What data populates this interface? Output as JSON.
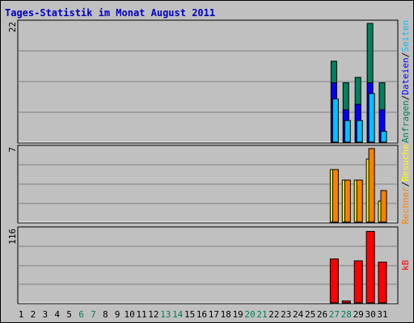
{
  "title": "Tages-Statistik im Monat August 2011",
  "colors": {
    "background": "#c0c0c0",
    "title": "#0000c0",
    "anfragen": "#00805c",
    "dateien": "#0000ff",
    "seiten": "#00c0ff",
    "besuche": "#ffff00",
    "rechner": "#ff8000",
    "kb": "#ff0000",
    "weekend_label": "#00805c",
    "grid": "#808080"
  },
  "chart_data": [
    {
      "type": "bar",
      "panel": "top",
      "ymax_label": "22",
      "ylim": [
        0,
        22
      ],
      "legend": [
        "Anfragen",
        "/",
        "Dateien",
        "/",
        "Seiten"
      ],
      "x": [
        27,
        28,
        29,
        30,
        31
      ],
      "series": [
        {
          "name": "Anfragen",
          "values": [
            15,
            11,
            12,
            22,
            11
          ]
        },
        {
          "name": "Dateien",
          "values": [
            11,
            6,
            7,
            11,
            6
          ]
        },
        {
          "name": "Seiten",
          "values": [
            8,
            4,
            4,
            9,
            2
          ]
        }
      ]
    },
    {
      "type": "bar",
      "panel": "middle",
      "ymax_label": "7",
      "ylim": [
        0,
        7
      ],
      "legend": [
        "Rechner",
        "/",
        "Besuche"
      ],
      "x": [
        27,
        28,
        29,
        30,
        31
      ],
      "series": [
        {
          "name": "Besuche",
          "values": [
            5,
            4,
            4,
            6,
            2
          ]
        },
        {
          "name": "Rechner",
          "values": [
            5,
            4,
            4,
            7,
            3
          ]
        }
      ]
    },
    {
      "type": "bar",
      "panel": "bottom",
      "ymax_label": "116",
      "ylim": [
        0,
        116
      ],
      "legend": [
        "kB"
      ],
      "x": [
        27,
        28,
        29,
        30,
        31
      ],
      "series": [
        {
          "name": "kB",
          "values": [
            70,
            3,
            67,
            114,
            65
          ]
        }
      ]
    }
  ],
  "days": [
    "1",
    "2",
    "3",
    "4",
    "5",
    "6",
    "7",
    "8",
    "9",
    "10",
    "11",
    "12",
    "13",
    "14",
    "15",
    "16",
    "17",
    "18",
    "19",
    "20",
    "21",
    "22",
    "23",
    "24",
    "25",
    "26",
    "27",
    "28",
    "29",
    "30",
    "31"
  ],
  "weekend_days": [
    "6",
    "7",
    "13",
    "14",
    "20",
    "21",
    "27",
    "28"
  ]
}
